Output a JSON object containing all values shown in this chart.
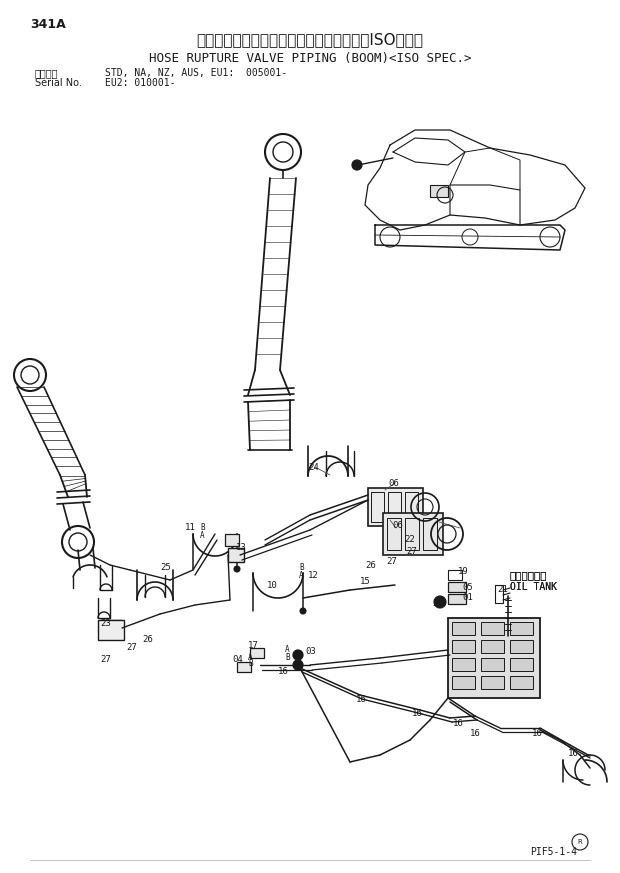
{
  "page_id": "341A",
  "title_japanese": "ホースラプチャーバルブ配管（ブーム）《ISO仕様》",
  "title_english": "HOSE RUPTURE VALVE PIPING (BOOM)<ISO SPEC.>",
  "serial_label_ja": "適用号機",
  "serial_label_en": "Serial No.",
  "serial_info_line1": "STD, NA, NZ, AUS, EU1:  005001-",
  "serial_info_line2": "                  EU2: 010001-",
  "page_code": "PIF5-1-4",
  "bg_color": "#ffffff",
  "line_color": "#1a1a1a",
  "fig_width": 6.2,
  "fig_height": 8.73,
  "dpi": 100,
  "oil_tank_ja": "オイルタンク",
  "oil_tank_en": "OIL TANK"
}
